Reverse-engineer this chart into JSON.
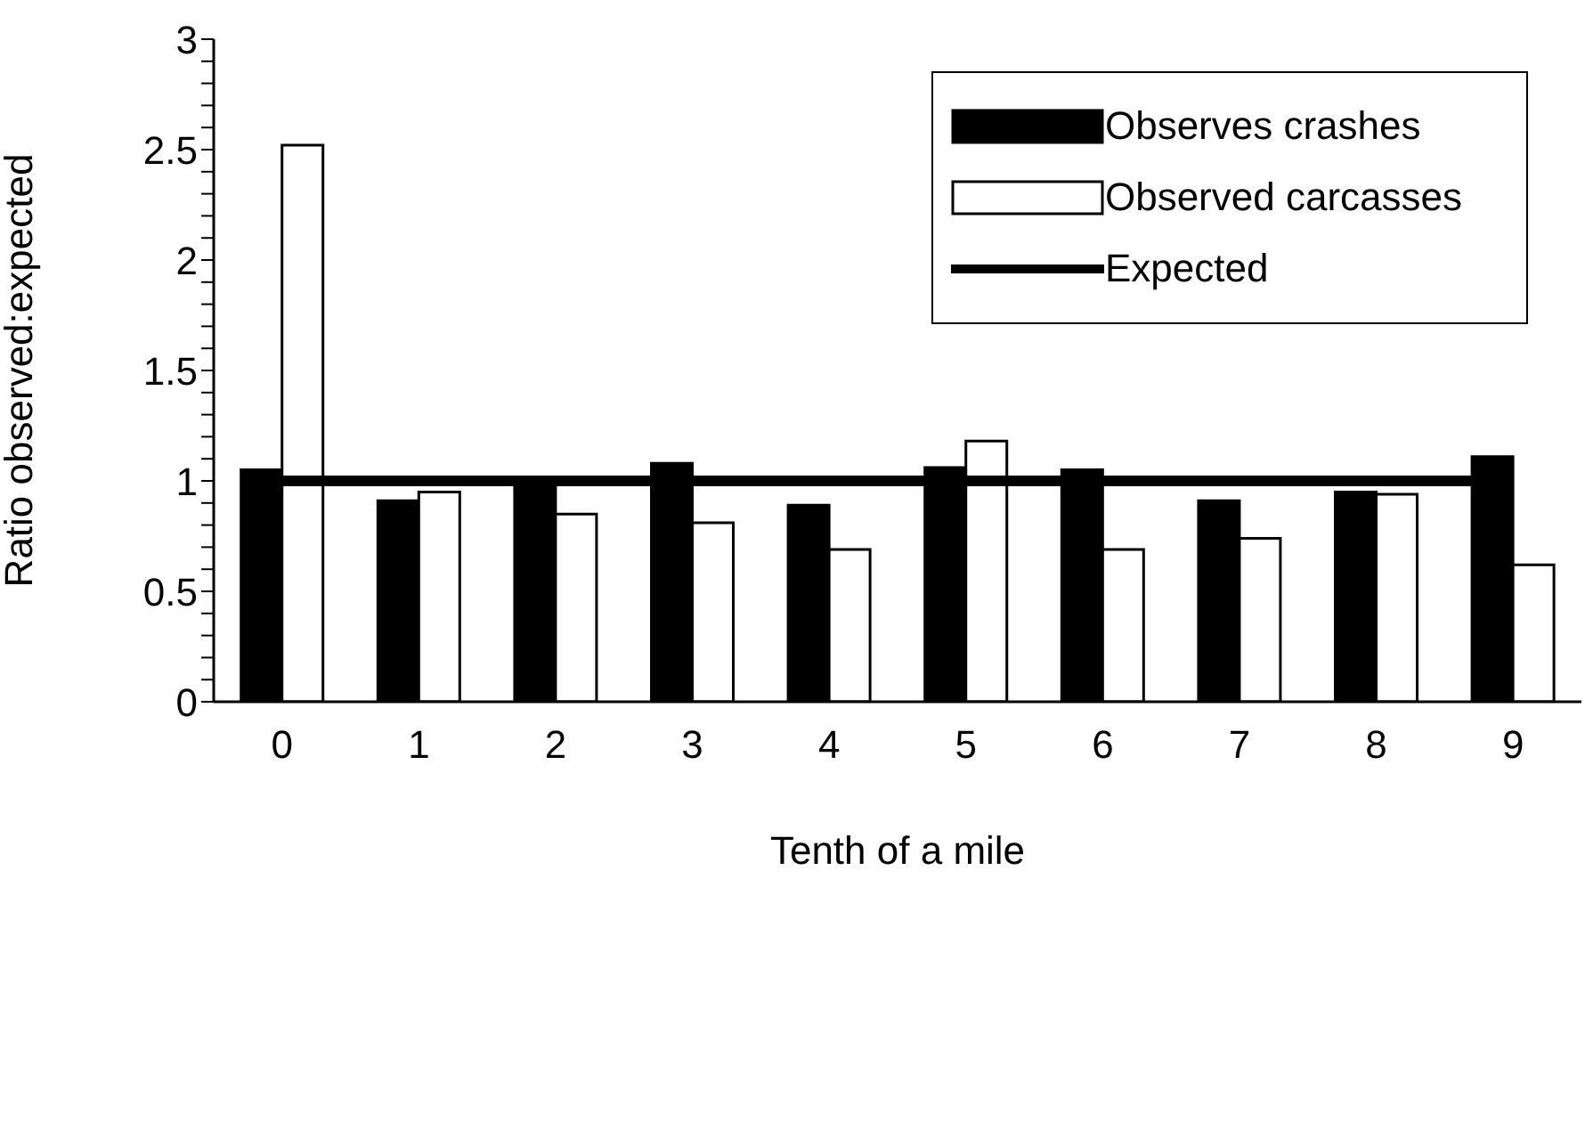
{
  "chart_data": {
    "type": "bar",
    "xlabel": "Tenth of a mile",
    "ylabel": "Ratio observed:expected",
    "categories": [
      "0",
      "1",
      "2",
      "3",
      "4",
      "5",
      "6",
      "7",
      "8",
      "9"
    ],
    "series": [
      {
        "name": "Observes crashes",
        "color": "#000000",
        "values": [
          1.05,
          0.91,
          1.0,
          1.08,
          0.89,
          1.06,
          1.05,
          0.91,
          0.95,
          1.11
        ]
      },
      {
        "name": "Observed carcasses",
        "color": "#ffffff",
        "values": [
          2.52,
          0.95,
          0.85,
          0.81,
          0.69,
          1.18,
          0.69,
          0.74,
          0.94,
          0.62
        ]
      },
      {
        "name": "Expected",
        "type": "line",
        "color": "#000000",
        "values": [
          1,
          1,
          1,
          1,
          1,
          1,
          1,
          1,
          1,
          1
        ]
      }
    ],
    "ylim": [
      0,
      3
    ],
    "yticks": [
      0,
      {
        "value": 0.1,
        "label": null
      },
      {
        "value": 0.2,
        "label": null
      },
      {
        "value": 0.3,
        "label": null
      },
      {
        "value": 0.4,
        "label": null
      },
      0.5,
      {
        "value": 0.6,
        "label": null
      },
      {
        "value": 0.7,
        "label": null
      },
      {
        "value": 0.8,
        "label": null
      },
      {
        "value": 0.9,
        "label": null
      },
      1,
      {
        "value": 1.1,
        "label": null
      },
      {
        "value": 1.2,
        "label": null
      },
      {
        "value": 1.3,
        "label": null
      },
      {
        "value": 1.4,
        "label": null
      },
      1.5,
      {
        "value": 1.6,
        "label": null
      },
      {
        "value": 1.7,
        "label": null
      },
      {
        "value": 1.8,
        "label": null
      },
      {
        "value": 1.9,
        "label": null
      },
      2,
      {
        "value": 2.1,
        "label": null
      },
      {
        "value": 2.2,
        "label": null
      },
      {
        "value": 2.3,
        "label": null
      },
      {
        "value": 2.4,
        "label": null
      },
      2.5,
      {
        "value": 2.6,
        "label": null
      },
      {
        "value": 2.7,
        "label": null
      },
      {
        "value": 2.8,
        "label": null
      },
      {
        "value": 2.9,
        "label": null
      },
      3
    ],
    "grid": false,
    "legend": "top right"
  }
}
